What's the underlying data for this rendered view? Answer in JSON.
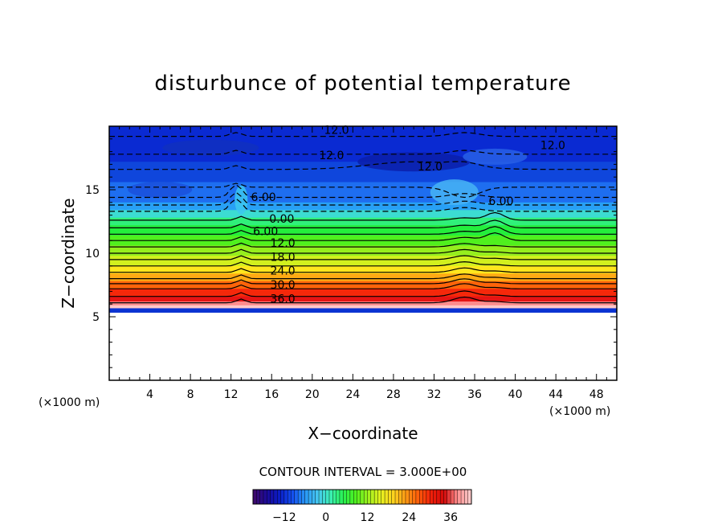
{
  "chart_data": {
    "type": "heatmap",
    "title": "disturbunce of potential temperature",
    "xlabel": "X−coordinate",
    "ylabel": "Z−coordinate",
    "x_unit_left": "(×1000 m)",
    "x_unit_right": "(×1000 m)",
    "xlim": [
      0,
      50
    ],
    "ylim": [
      0,
      20
    ],
    "x_ticks": [
      4,
      8,
      12,
      16,
      20,
      24,
      28,
      32,
      36,
      40,
      44,
      48
    ],
    "y_ticks": [
      5,
      10,
      15
    ],
    "contour_labels": [
      {
        "text": "12.0",
        "x": 22.4,
        "z": 19.6,
        "dashed": true
      },
      {
        "text": "12.0",
        "x": 21.9,
        "z": 17.6,
        "dashed": true
      },
      {
        "text": "12.0",
        "x": 31.6,
        "z": 16.7,
        "dashed": true
      },
      {
        "text": "12.0",
        "x": 43.7,
        "z": 18.4,
        "dashed": true
      },
      {
        "text": "6.00",
        "x": 15.2,
        "z": 14.3,
        "dashed": true
      },
      {
        "text": "6.00",
        "x": 38.6,
        "z": 14.0,
        "dashed": true
      },
      {
        "text": "0.00",
        "x": 17.0,
        "z": 12.6,
        "dashed": false
      },
      {
        "text": "6.00",
        "x": 15.4,
        "z": 11.6,
        "dashed": false
      },
      {
        "text": "12.0",
        "x": 17.1,
        "z": 10.7,
        "dashed": false
      },
      {
        "text": "18.0",
        "x": 17.1,
        "z": 9.6,
        "dashed": false
      },
      {
        "text": "24.0",
        "x": 17.1,
        "z": 8.5,
        "dashed": false
      },
      {
        "text": "30.0",
        "x": 17.1,
        "z": 7.4,
        "dashed": false
      },
      {
        "text": "36.0",
        "x": 17.1,
        "z": 6.3,
        "dashed": false
      }
    ],
    "contour_interval_label": "CONTOUR INTERVAL = 3.000E+00",
    "contour_interval": 3.0,
    "colorbar": {
      "min": -21,
      "max": 42,
      "ticks": [
        -12,
        0,
        12,
        24,
        36
      ],
      "tick_labels": [
        "−12",
        "0",
        "12",
        "24",
        "36"
      ],
      "colors": [
        "#3c0a6e",
        "#1a0a9a",
        "#0a1ec8",
        "#1450f0",
        "#2896f5",
        "#46c8f0",
        "#3cf0b4",
        "#28f050",
        "#50f01e",
        "#a0f01e",
        "#e6f01e",
        "#ffd21e",
        "#ff9614",
        "#ff5a0a",
        "#f01e0a",
        "#d20a0a",
        "#ff8c8c",
        "#ffc8c8"
      ]
    },
    "z_bottom_of_field": 5.7,
    "grid": false
  }
}
